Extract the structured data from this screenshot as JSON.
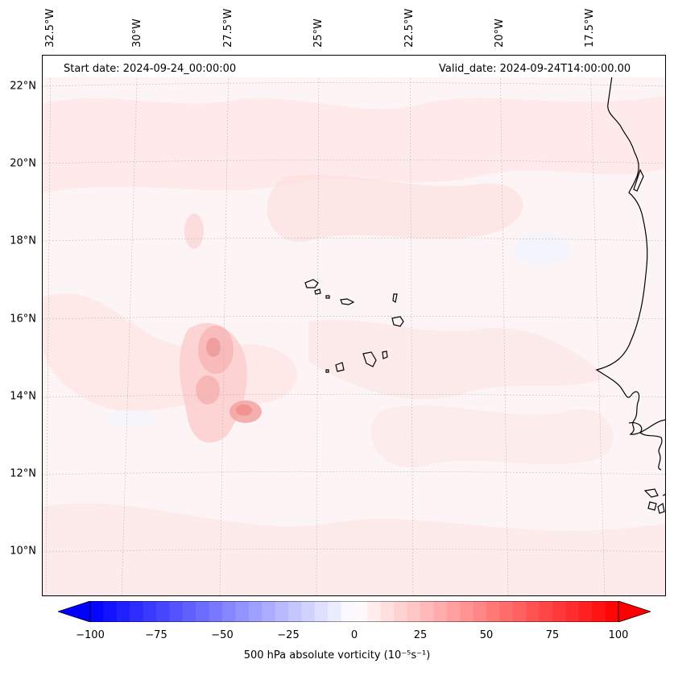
{
  "header": {
    "start_date": "Start date: 2024-09-24_00:00:00",
    "valid_date": "Valid_date: 2024-09-24T14:00:00.00"
  },
  "axes": {
    "lat_labels": [
      "22°N",
      "20°N",
      "18°N",
      "16°N",
      "14°N",
      "12°N",
      "10°N"
    ],
    "lon_labels": [
      "32.5°W",
      "30°W",
      "27.5°W",
      "25°W",
      "22.5°W",
      "20°W",
      "17.5°W"
    ]
  },
  "colorbar": {
    "label": "500 hPa absolute vorticity (10⁻⁵s⁻¹)",
    "ticks": [
      "−100",
      "−75",
      "−50",
      "−25",
      "0",
      "25",
      "50",
      "75",
      "100"
    ],
    "min": -100,
    "max": 100,
    "low_color": "#0000ff",
    "mid_color": "#ffffff",
    "high_color": "#ff0000"
  },
  "colors": {
    "background_field": "#fdf5f5",
    "coastline": "#000000",
    "gridline": "#bbbbbb"
  }
}
